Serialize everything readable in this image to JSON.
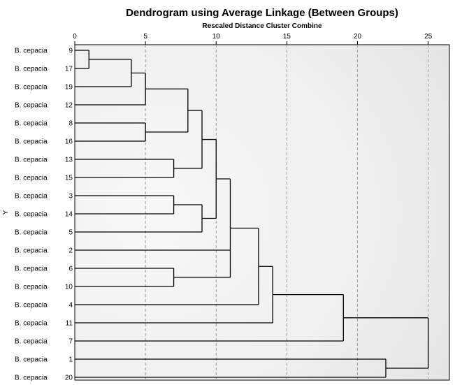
{
  "chart_data": {
    "type": "dendrogram",
    "title": "Dendrogram using Average Linkage (Between Groups)",
    "subtitle": "Rescaled Distance Cluster Combine",
    "ylabel": "Y",
    "xlim": [
      0,
      26.5
    ],
    "xticks": [
      0,
      5,
      10,
      15,
      20,
      25
    ],
    "grid": "vertical dashed at ticks",
    "leaves": [
      {
        "label": "B. cepacia",
        "id": "9"
      },
      {
        "label": "B. cepacia",
        "id": "17"
      },
      {
        "label": "B. cepacia",
        "id": "19"
      },
      {
        "label": "B. cepacia",
        "id": "12"
      },
      {
        "label": "B. cepacia",
        "id": "8"
      },
      {
        "label": "B. cepacia",
        "id": "16"
      },
      {
        "label": "B. cepacia",
        "id": "13"
      },
      {
        "label": "B. cepacia",
        "id": "15"
      },
      {
        "label": "B. cepacia",
        "id": "3"
      },
      {
        "label": "B. cepacia",
        "id": "14"
      },
      {
        "label": "B. cepacia",
        "id": "5"
      },
      {
        "label": "B. cepacia",
        "id": "2"
      },
      {
        "label": "B. cepacia",
        "id": "6"
      },
      {
        "label": "B. cepacia",
        "id": "10"
      },
      {
        "label": "B. cepacia",
        "id": "4"
      },
      {
        "label": "B. cepacia",
        "id": "11"
      },
      {
        "label": "B. cepacia",
        "id": "7"
      },
      {
        "label": "B. cepacia",
        "id": "1"
      },
      {
        "label": "B. cepacia",
        "id": "20"
      }
    ],
    "merges": [
      {
        "id": "m1",
        "children": [
          0,
          1
        ],
        "distance": 1
      },
      {
        "id": "m2",
        "children": [
          "m1",
          2
        ],
        "distance": 4
      },
      {
        "id": "m3",
        "children": [
          "m2",
          3
        ],
        "distance": 5
      },
      {
        "id": "m4",
        "children": [
          4,
          5
        ],
        "distance": 5
      },
      {
        "id": "m5",
        "children": [
          "m3",
          "m4"
        ],
        "distance": 8
      },
      {
        "id": "m6",
        "children": [
          6,
          7
        ],
        "distance": 7
      },
      {
        "id": "m7",
        "children": [
          "m5",
          "m6"
        ],
        "distance": 9
      },
      {
        "id": "m8",
        "children": [
          8,
          9
        ],
        "distance": 7
      },
      {
        "id": "m9",
        "children": [
          "m8",
          10
        ],
        "distance": 9
      },
      {
        "id": "m10",
        "children": [
          "m7",
          "m9"
        ],
        "distance": 10
      },
      {
        "id": "m11",
        "children": [
          12,
          13
        ],
        "distance": 7
      },
      {
        "id": "m12",
        "children": [
          "m10",
          11,
          "m11"
        ],
        "distance": 11
      },
      {
        "id": "m13",
        "children": [
          "m12",
          14
        ],
        "distance": 13
      },
      {
        "id": "m14",
        "children": [
          "m13",
          15
        ],
        "distance": 14
      },
      {
        "id": "m15",
        "children": [
          "m14",
          16
        ],
        "distance": 19
      },
      {
        "id": "m16",
        "children": [
          17,
          18
        ],
        "distance": 22
      },
      {
        "id": "m17",
        "children": [
          "m15",
          "m16"
        ],
        "distance": 25
      }
    ]
  }
}
